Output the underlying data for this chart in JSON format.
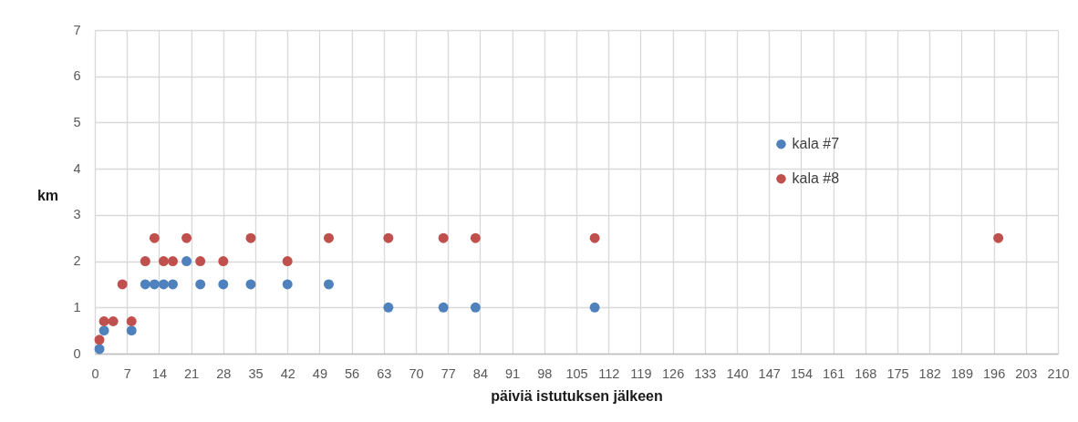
{
  "chart_data": {
    "type": "scatter",
    "xlabel": "päiviä istutuksen jälkeen",
    "ylabel": "km",
    "xlim": [
      0,
      210
    ],
    "xticks": [
      0,
      7,
      14,
      21,
      28,
      35,
      42,
      49,
      56,
      63,
      70,
      77,
      84,
      91,
      98,
      105,
      112,
      119,
      126,
      133,
      140,
      147,
      154,
      161,
      168,
      175,
      182,
      189,
      196,
      203,
      210
    ],
    "ylim": [
      0,
      7
    ],
    "yticks": [
      0,
      1,
      2,
      3,
      4,
      5,
      6,
      7
    ],
    "grid": true,
    "legend": "right",
    "marker": "circle",
    "series": [
      {
        "name": "kala #7",
        "color": "#4f81bd",
        "x": [
          1,
          2,
          8,
          11,
          13,
          15,
          17,
          20,
          23,
          28,
          34,
          42,
          51,
          64,
          76,
          83,
          109
        ],
        "values": [
          0.1,
          0.5,
          0.5,
          1.5,
          1.5,
          1.5,
          1.5,
          2,
          1.5,
          1.5,
          1.5,
          1.5,
          1.5,
          1,
          1,
          1,
          1
        ]
      },
      {
        "name": "kala #8",
        "color": "#c0504d",
        "x": [
          1,
          2,
          4,
          6,
          8,
          11,
          13,
          15,
          17,
          20,
          23,
          28,
          34,
          42,
          51,
          64,
          76,
          83,
          109,
          197
        ],
        "values": [
          0.3,
          0.7,
          0.7,
          1.5,
          0.7,
          2,
          2.5,
          2,
          2,
          2.5,
          2,
          2,
          2.5,
          2,
          2.5,
          2.5,
          2.5,
          2.5,
          2.5,
          2.5
        ]
      }
    ]
  }
}
